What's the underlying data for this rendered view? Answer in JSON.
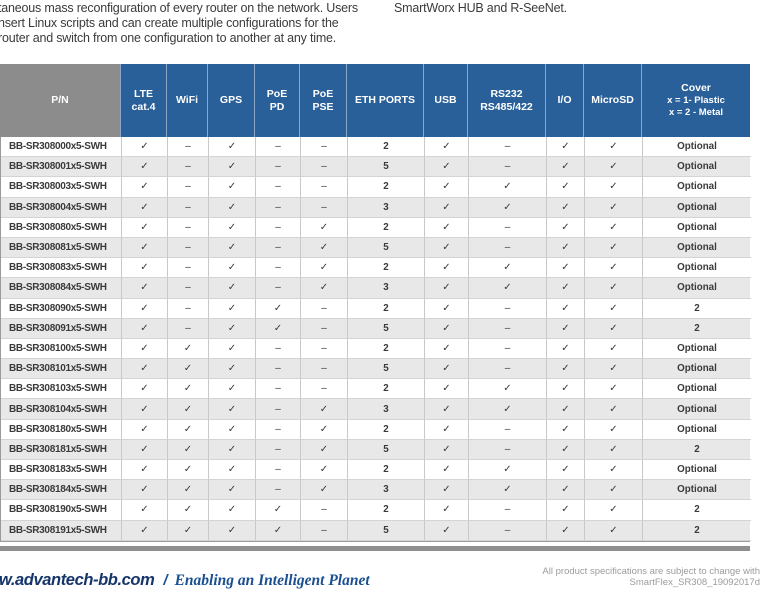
{
  "intro": {
    "line1": "taneous mass reconfiguration of every router on the network. Users",
    "line2": "nsert Linux scripts and can create multiple configurations for the",
    "line3": "router and switch from one configuration to another at any time.",
    "right_line": "SmartWorx HUB and R-SeeNet."
  },
  "table": {
    "header": [
      {
        "lines": [
          "P/N"
        ]
      },
      {
        "lines": [
          "LTE",
          "cat.4"
        ]
      },
      {
        "lines": [
          "WiFi"
        ]
      },
      {
        "lines": [
          "GPS"
        ]
      },
      {
        "lines": [
          "PoE",
          "PD"
        ]
      },
      {
        "lines": [
          "PoE",
          "PSE"
        ]
      },
      {
        "lines": [
          "ETH PORTS"
        ]
      },
      {
        "lines": [
          "USB"
        ]
      },
      {
        "lines": [
          "RS232",
          "RS485/422"
        ]
      },
      {
        "lines": [
          "I/O"
        ]
      },
      {
        "lines": [
          "MicroSD"
        ]
      },
      {
        "lines": [
          "Cover",
          "x = 1- Plastic",
          "x = 2 - Metal"
        ]
      }
    ],
    "rows": [
      [
        "BB-SR308000x5-SWH",
        "✓",
        "–",
        "✓",
        "–",
        "–",
        "2",
        "✓",
        "–",
        "✓",
        "✓",
        "Optional"
      ],
      [
        "BB-SR308001x5-SWH",
        "✓",
        "–",
        "✓",
        "–",
        "–",
        "5",
        "✓",
        "–",
        "✓",
        "✓",
        "Optional"
      ],
      [
        "BB-SR308003x5-SWH",
        "✓",
        "–",
        "✓",
        "–",
        "–",
        "2",
        "✓",
        "✓",
        "✓",
        "✓",
        "Optional"
      ],
      [
        "BB-SR308004x5-SWH",
        "✓",
        "–",
        "✓",
        "–",
        "–",
        "3",
        "✓",
        "✓",
        "✓",
        "✓",
        "Optional"
      ],
      [
        "BB-SR308080x5-SWH",
        "✓",
        "–",
        "✓",
        "–",
        "✓",
        "2",
        "✓",
        "–",
        "✓",
        "✓",
        "Optional"
      ],
      [
        "BB-SR308081x5-SWH",
        "✓",
        "–",
        "✓",
        "–",
        "✓",
        "5",
        "✓",
        "–",
        "✓",
        "✓",
        "Optional"
      ],
      [
        "BB-SR308083x5-SWH",
        "✓",
        "–",
        "✓",
        "–",
        "✓",
        "2",
        "✓",
        "✓",
        "✓",
        "✓",
        "Optional"
      ],
      [
        "BB-SR308084x5-SWH",
        "✓",
        "–",
        "✓",
        "–",
        "✓",
        "3",
        "✓",
        "✓",
        "✓",
        "✓",
        "Optional"
      ],
      [
        "BB-SR308090x5-SWH",
        "✓",
        "–",
        "✓",
        "✓",
        "–",
        "2",
        "✓",
        "–",
        "✓",
        "✓",
        "2"
      ],
      [
        "BB-SR308091x5-SWH",
        "✓",
        "–",
        "✓",
        "✓",
        "–",
        "5",
        "✓",
        "–",
        "✓",
        "✓",
        "2"
      ],
      [
        "BB-SR308100x5-SWH",
        "✓",
        "✓",
        "✓",
        "–",
        "–",
        "2",
        "✓",
        "–",
        "✓",
        "✓",
        "Optional"
      ],
      [
        "BB-SR308101x5-SWH",
        "✓",
        "✓",
        "✓",
        "–",
        "–",
        "5",
        "✓",
        "–",
        "✓",
        "✓",
        "Optional"
      ],
      [
        "BB-SR308103x5-SWH",
        "✓",
        "✓",
        "✓",
        "–",
        "–",
        "2",
        "✓",
        "✓",
        "✓",
        "✓",
        "Optional"
      ],
      [
        "BB-SR308104x5-SWH",
        "✓",
        "✓",
        "✓",
        "–",
        "✓",
        "3",
        "✓",
        "✓",
        "✓",
        "✓",
        "Optional"
      ],
      [
        "BB-SR308180x5-SWH",
        "✓",
        "✓",
        "✓",
        "–",
        "✓",
        "2",
        "✓",
        "–",
        "✓",
        "✓",
        "Optional"
      ],
      [
        "BB-SR308181x5-SWH",
        "✓",
        "✓",
        "✓",
        "–",
        "✓",
        "5",
        "✓",
        "–",
        "✓",
        "✓",
        "2"
      ],
      [
        "BB-SR308183x5-SWH",
        "✓",
        "✓",
        "✓",
        "–",
        "✓",
        "2",
        "✓",
        "✓",
        "✓",
        "✓",
        "Optional"
      ],
      [
        "BB-SR308184x5-SWH",
        "✓",
        "✓",
        "✓",
        "–",
        "✓",
        "3",
        "✓",
        "✓",
        "✓",
        "✓",
        "Optional"
      ],
      [
        "BB-SR308190x5-SWH",
        "✓",
        "✓",
        "✓",
        "✓",
        "–",
        "2",
        "✓",
        "–",
        "✓",
        "✓",
        "2"
      ],
      [
        "BB-SR308191x5-SWH",
        "✓",
        "✓",
        "✓",
        "✓",
        "–",
        "5",
        "✓",
        "–",
        "✓",
        "✓",
        "2"
      ]
    ]
  },
  "footer": {
    "site": "w.advantech-bb.com",
    "separator": "/",
    "tagline": "Enabling an Intelligent Planet",
    "note_line1": "All product specifications are subject to change with",
    "note_line2": "SmartFlex_SR308_19092017d"
  },
  "colors": {
    "header_blue": "#2a6099",
    "pn_gray": "#8c8c8c",
    "row_alt": "#e8e8e8",
    "bar_gray": "#8f8f8f",
    "footer_navy": "#16356b",
    "footer_blue": "#1a4f91"
  }
}
